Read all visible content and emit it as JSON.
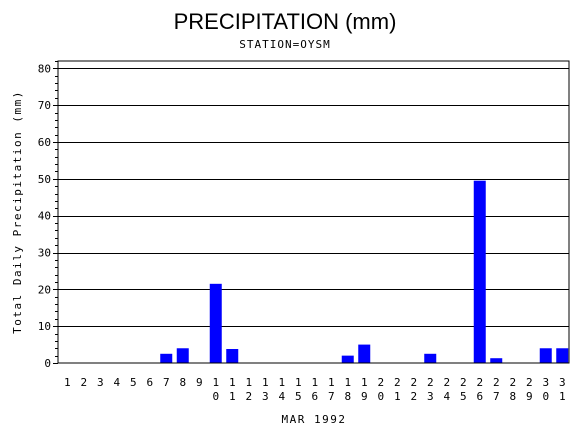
{
  "chart_data": {
    "type": "bar",
    "title": "PRECIPITATION (mm)",
    "subtitle": "STATION=OYSM",
    "xlabel": "MAR 1992",
    "ylabel": "Total Daily Precipitation (mm)",
    "ylim": [
      0,
      82
    ],
    "yticks": [
      0,
      10,
      20,
      30,
      40,
      50,
      60,
      70,
      80
    ],
    "grid": true,
    "bar_color": "#0000ff",
    "categories": [
      "1",
      "2",
      "3",
      "4",
      "5",
      "6",
      "7",
      "8",
      "9",
      "10",
      "11",
      "12",
      "13",
      "14",
      "15",
      "16",
      "17",
      "18",
      "19",
      "20",
      "21",
      "22",
      "23",
      "24",
      "25",
      "26",
      "27",
      "28",
      "29",
      "30",
      "31"
    ],
    "values": [
      0,
      0,
      0,
      0,
      0,
      0,
      2.5,
      4,
      0,
      21.5,
      3.8,
      0,
      0,
      0,
      0,
      0,
      0,
      2,
      5,
      0,
      0,
      0,
      2.5,
      0,
      0,
      49.5,
      1.3,
      0,
      0,
      4,
      4
    ]
  }
}
